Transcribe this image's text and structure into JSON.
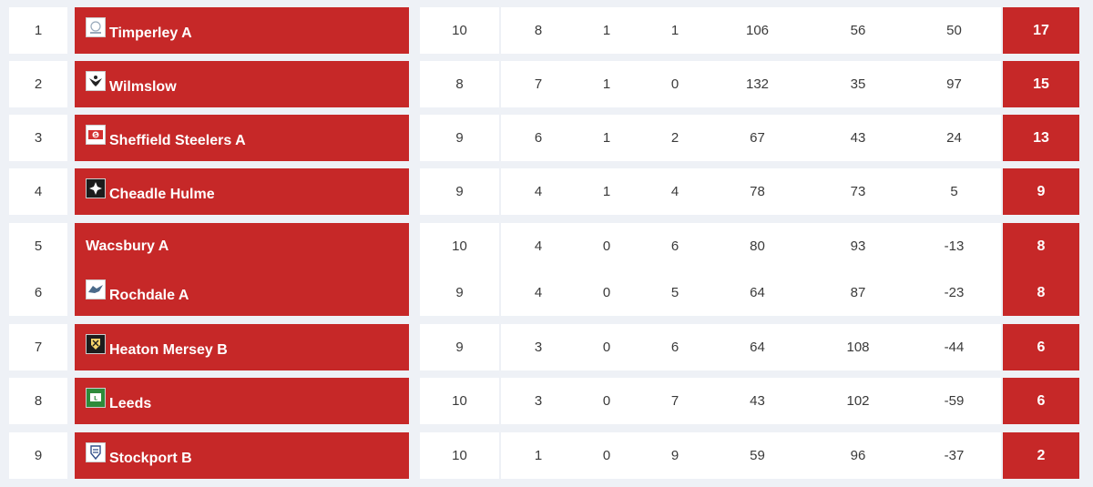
{
  "colors": {
    "accent": "#c62828",
    "background": "#eef1f6"
  },
  "standings": [
    {
      "pos": "1",
      "team": "Timperley A",
      "logo": "timperley-logo-icon",
      "played": "10",
      "won": "8",
      "drawn": "1",
      "lost": "1",
      "for": "106",
      "against": "56",
      "diff": "50",
      "points": "17"
    },
    {
      "pos": "2",
      "team": "Wilmslow",
      "logo": "wilmslow-logo-icon",
      "played": "8",
      "won": "7",
      "drawn": "1",
      "lost": "0",
      "for": "132",
      "against": "35",
      "diff": "97",
      "points": "15"
    },
    {
      "pos": "3",
      "team": "Sheffield Steelers A",
      "logo": "sheffield-steelers-logo-icon",
      "played": "9",
      "won": "6",
      "drawn": "1",
      "lost": "2",
      "for": "67",
      "against": "43",
      "diff": "24",
      "points": "13"
    },
    {
      "pos": "4",
      "team": "Cheadle Hulme",
      "logo": "cheadle-hulme-logo-icon",
      "played": "9",
      "won": "4",
      "drawn": "1",
      "lost": "4",
      "for": "78",
      "against": "73",
      "diff": "5",
      "points": "9"
    },
    {
      "pos": "5",
      "team": "Wacsbury A",
      "logo": "",
      "played": "10",
      "won": "4",
      "drawn": "0",
      "lost": "6",
      "for": "80",
      "against": "93",
      "diff": "-13",
      "points": "8"
    },
    {
      "pos": "6",
      "team": "Rochdale A",
      "logo": "rochdale-logo-icon",
      "played": "9",
      "won": "4",
      "drawn": "0",
      "lost": "5",
      "for": "64",
      "against": "87",
      "diff": "-23",
      "points": "8"
    },
    {
      "pos": "7",
      "team": "Heaton Mersey B",
      "logo": "heaton-mersey-logo-icon",
      "played": "9",
      "won": "3",
      "drawn": "0",
      "lost": "6",
      "for": "64",
      "against": "108",
      "diff": "-44",
      "points": "6"
    },
    {
      "pos": "8",
      "team": "Leeds",
      "logo": "leeds-logo-icon",
      "played": "10",
      "won": "3",
      "drawn": "0",
      "lost": "7",
      "for": "43",
      "against": "102",
      "diff": "-59",
      "points": "6"
    },
    {
      "pos": "9",
      "team": "Stockport B",
      "logo": "stockport-logo-icon",
      "played": "10",
      "won": "1",
      "drawn": "0",
      "lost": "9",
      "for": "59",
      "against": "96",
      "diff": "-37",
      "points": "2"
    }
  ]
}
